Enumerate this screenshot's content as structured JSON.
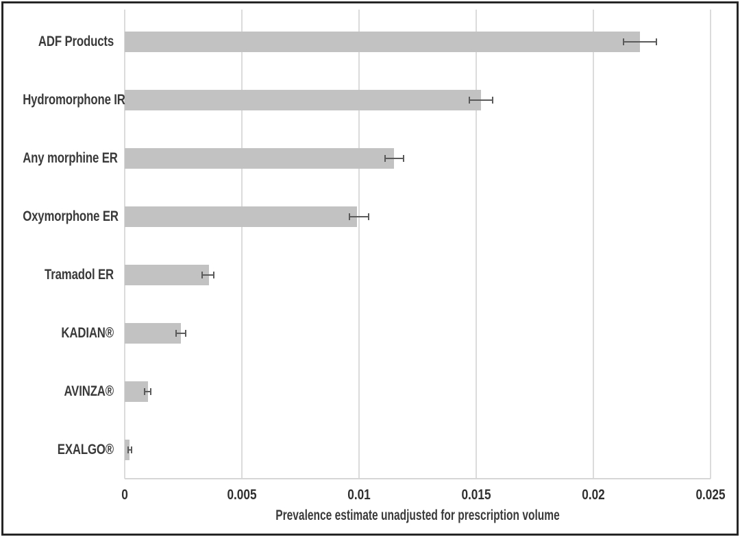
{
  "chart_data": {
    "type": "bar",
    "orientation": "horizontal",
    "title": "",
    "xlabel": "Prevalence estimate unadjusted for prescription volume",
    "ylabel": "",
    "xlim": [
      0,
      0.025
    ],
    "x_tick_values": [
      0,
      0.005,
      0.01,
      0.015,
      0.02,
      0.025
    ],
    "x_tick_labels": [
      "0",
      "0.005",
      "0.01",
      "0.015",
      "0.02",
      "0.025"
    ],
    "grid": "vertical-gridlines-only",
    "legend": "none",
    "error_bars": "horizontal, both directions, capped",
    "colors": {
      "bar_fill": "#c2c2c2",
      "error_bar": "#5a5a5a",
      "gridline": "#dbdbdb",
      "label_text": "#3a3a3a",
      "frame_border": "#262626"
    },
    "categories": [
      "ADF Products",
      "Hydromorphone IR",
      "Any morphine ER",
      "Oxymorphone ER",
      "Tramadol ER",
      "KADIAN®",
      "AVINZA®",
      "EXALGO®"
    ],
    "values": [
      0.022,
      0.0152,
      0.0115,
      0.0099,
      0.0036,
      0.0024,
      0.001,
      0.0002
    ],
    "ci_low": [
      0.0213,
      0.0147,
      0.0111,
      0.0096,
      0.0033,
      0.0022,
      0.00085,
      0.00014
    ],
    "ci_high": [
      0.0227,
      0.0157,
      0.0119,
      0.0104,
      0.0038,
      0.0026,
      0.0011,
      0.00028
    ]
  }
}
